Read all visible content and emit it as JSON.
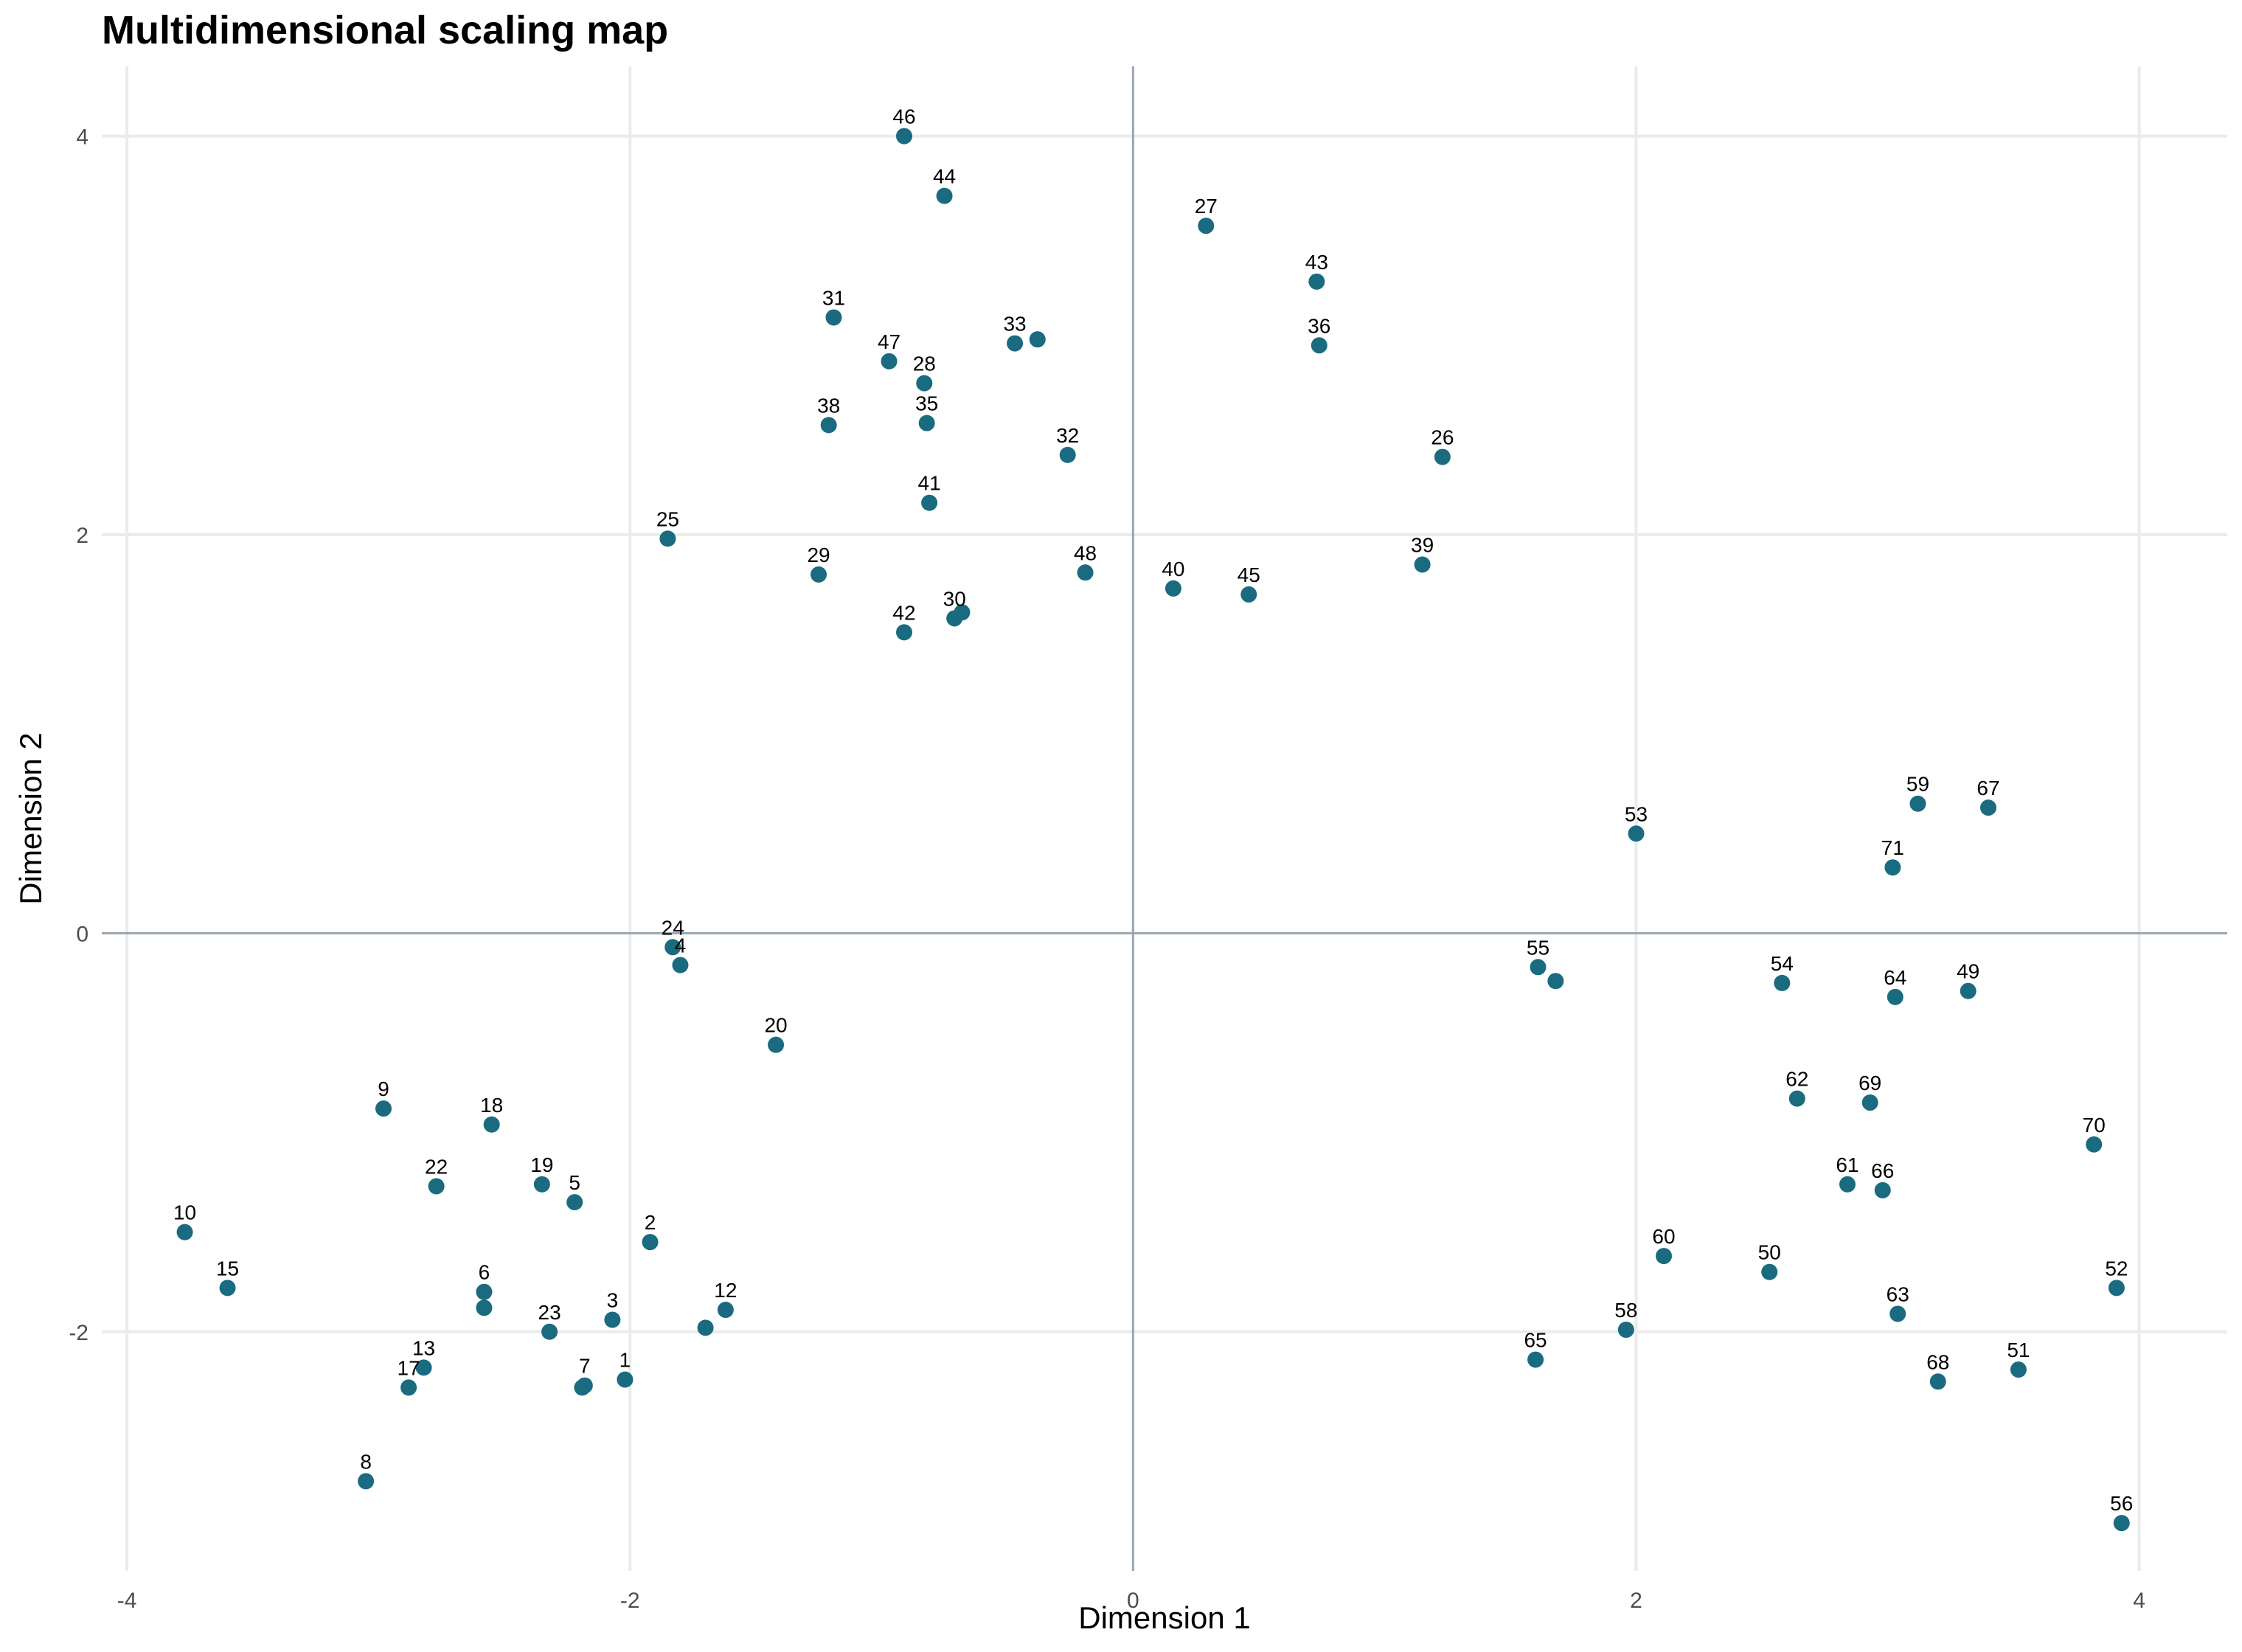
{
  "chart_data": {
    "type": "scatter",
    "title": "Multidimensional scaling map",
    "xlabel": "Dimension 1",
    "ylabel": "Dimension 2",
    "xlim": [
      -4.1,
      4.35
    ],
    "ylim": [
      -3.2,
      4.35
    ],
    "xticks": [
      -4,
      -2,
      0,
      2,
      4
    ],
    "yticks": [
      -2,
      0,
      2,
      4
    ],
    "grid": true,
    "reference_lines": {
      "x": 0,
      "y": 0,
      "color": "#9aa5b1"
    },
    "point_color": "#1a6b80",
    "points": [
      {
        "label": "1",
        "x": -2.02,
        "y": -2.24
      },
      {
        "label": "2",
        "x": -1.92,
        "y": -1.55
      },
      {
        "label": "3",
        "x": -2.07,
        "y": -1.94
      },
      {
        "label": "4",
        "x": -1.8,
        "y": -0.16
      },
      {
        "label": "5",
        "x": -2.22,
        "y": -1.35
      },
      {
        "label": "6",
        "x": -2.58,
        "y": -1.8
      },
      {
        "label": "7",
        "x": -2.18,
        "y": -2.27
      },
      {
        "label": "8",
        "x": -3.05,
        "y": -2.75
      },
      {
        "label": "9",
        "x": -2.98,
        "y": -0.88
      },
      {
        "label": "10",
        "x": -3.77,
        "y": -1.5
      },
      {
        "label": "12",
        "x": -1.62,
        "y": -1.89
      },
      {
        "label": "13",
        "x": -2.82,
        "y": -2.18
      },
      {
        "label": "15",
        "x": -3.6,
        "y": -1.78
      },
      {
        "label": "17",
        "x": -2.88,
        "y": -2.28
      },
      {
        "label": "18",
        "x": -2.55,
        "y": -0.96
      },
      {
        "label": "19",
        "x": -2.35,
        "y": -1.26
      },
      {
        "label": "20",
        "x": -1.42,
        "y": -0.56
      },
      {
        "label": "22",
        "x": -2.77,
        "y": -1.27
      },
      {
        "label": "23",
        "x": -2.32,
        "y": -2.0
      },
      {
        "label": "24",
        "x": -1.83,
        "y": -0.07
      },
      {
        "label": "25",
        "x": -1.85,
        "y": 1.98
      },
      {
        "label": "26",
        "x": 1.23,
        "y": 2.39
      },
      {
        "label": "27",
        "x": 0.29,
        "y": 3.55
      },
      {
        "label": "28",
        "x": -0.83,
        "y": 2.76
      },
      {
        "label": "29",
        "x": -1.25,
        "y": 1.8
      },
      {
        "label": "30",
        "x": -0.71,
        "y": 1.58
      },
      {
        "label": "31",
        "x": -1.19,
        "y": 3.09
      },
      {
        "label": "32",
        "x": -0.26,
        "y": 2.4
      },
      {
        "label": "33",
        "x": -0.47,
        "y": 2.96
      },
      {
        "label": "35",
        "x": -0.82,
        "y": 2.56
      },
      {
        "label": "36",
        "x": 0.74,
        "y": 2.95
      },
      {
        "label": "38",
        "x": -1.21,
        "y": 2.55
      },
      {
        "label": "39",
        "x": 1.15,
        "y": 1.85
      },
      {
        "label": "40",
        "x": 0.16,
        "y": 1.73
      },
      {
        "label": "41",
        "x": -0.81,
        "y": 2.16
      },
      {
        "label": "42",
        "x": -0.91,
        "y": 1.51
      },
      {
        "label": "43",
        "x": 0.73,
        "y": 3.27
      },
      {
        "label": "44",
        "x": -0.75,
        "y": 3.7
      },
      {
        "label": "45",
        "x": 0.46,
        "y": 1.7
      },
      {
        "label": "46",
        "x": -0.91,
        "y": 4.0
      },
      {
        "label": "47",
        "x": -0.97,
        "y": 2.87
      },
      {
        "label": "48",
        "x": -0.19,
        "y": 1.81
      },
      {
        "label": "49",
        "x": 3.32,
        "y": -0.29
      },
      {
        "label": "50",
        "x": 2.53,
        "y": -1.7
      },
      {
        "label": "51",
        "x": 3.52,
        "y": -2.19
      },
      {
        "label": "52",
        "x": 3.91,
        "y": -1.78
      },
      {
        "label": "53",
        "x": 2.0,
        "y": 0.5
      },
      {
        "label": "54",
        "x": 2.58,
        "y": -0.25
      },
      {
        "label": "55",
        "x": 1.61,
        "y": -0.17
      },
      {
        "label": "56",
        "x": 3.93,
        "y": -2.96
      },
      {
        "label": "58",
        "x": 1.96,
        "y": -1.99
      },
      {
        "label": "59",
        "x": 3.12,
        "y": 0.65
      },
      {
        "label": "60",
        "x": 2.11,
        "y": -1.62
      },
      {
        "label": "61",
        "x": 2.84,
        "y": -1.26
      },
      {
        "label": "62",
        "x": 2.64,
        "y": -0.83
      },
      {
        "label": "63",
        "x": 3.04,
        "y": -1.91
      },
      {
        "label": "64",
        "x": 3.03,
        "y": -0.32
      },
      {
        "label": "65",
        "x": 1.6,
        "y": -2.14
      },
      {
        "label": "66",
        "x": 2.98,
        "y": -1.29
      },
      {
        "label": "67",
        "x": 3.4,
        "y": 0.63
      },
      {
        "label": "68",
        "x": 3.2,
        "y": -2.25
      },
      {
        "label": "69",
        "x": 2.93,
        "y": -0.85
      },
      {
        "label": "70",
        "x": 3.82,
        "y": -1.06
      },
      {
        "label": "71",
        "x": 3.02,
        "y": 0.33
      }
    ],
    "unlabeled_points": [
      {
        "x": -0.38,
        "y": 2.98
      },
      {
        "x": 1.68,
        "y": -0.24
      },
      {
        "x": -0.68,
        "y": 1.61
      },
      {
        "x": -2.19,
        "y": -2.28
      },
      {
        "x": -2.58,
        "y": -1.88
      },
      {
        "x": -1.7,
        "y": -1.98
      }
    ]
  }
}
